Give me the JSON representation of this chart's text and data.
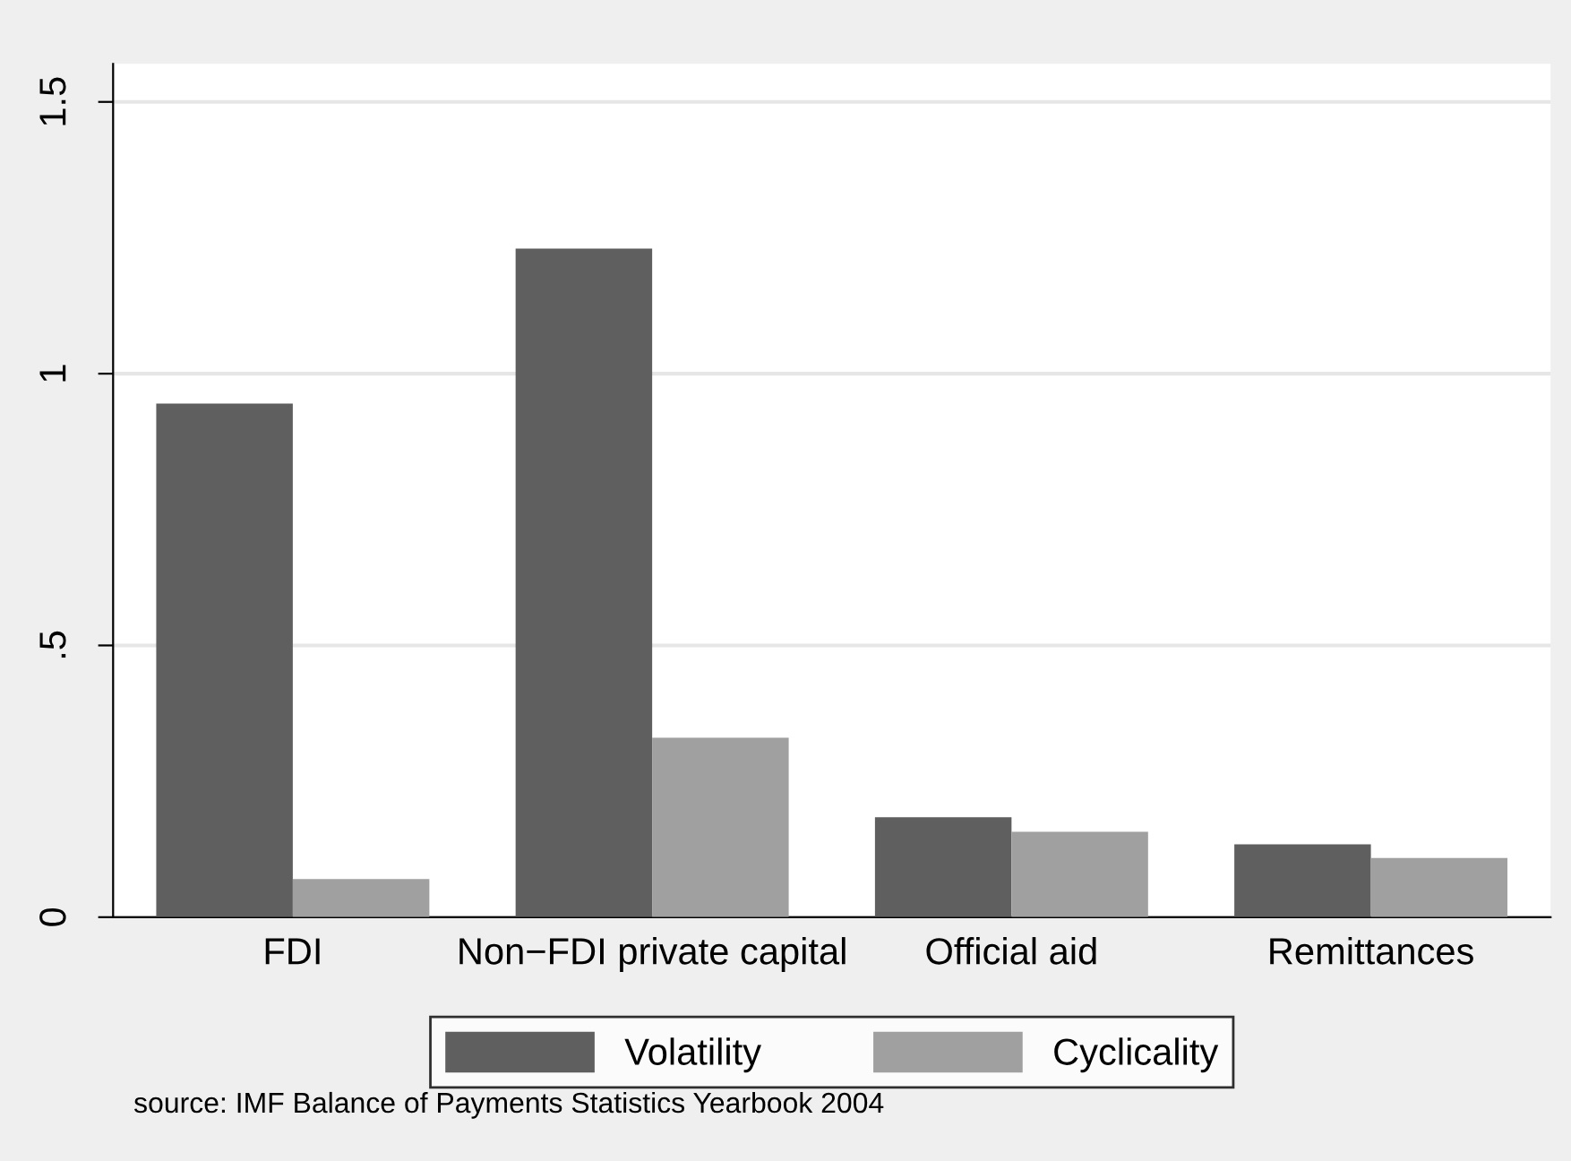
{
  "chart_data": {
    "type": "bar",
    "categories": [
      "FDI",
      "Non−FDI private capital",
      "Official aid",
      "Remittances"
    ],
    "series": [
      {
        "name": "Volatility",
        "color": "#5f5f5f",
        "values": [
          0.945,
          1.23,
          0.184,
          0.134
        ]
      },
      {
        "name": "Cyclicality",
        "color": "#a0a0a0",
        "values": [
          0.07,
          0.33,
          0.157,
          0.109
        ]
      }
    ],
    "ylim": [
      0,
      1.57
    ],
    "yticks": [
      0,
      {
        "value": 0.5,
        "label": ".5"
      },
      1,
      1.5
    ],
    "grid": "y",
    "legend": "bottom",
    "annotations": [
      "source: IMF Balance of Payments Statistics Yearbook 2004"
    ]
  }
}
